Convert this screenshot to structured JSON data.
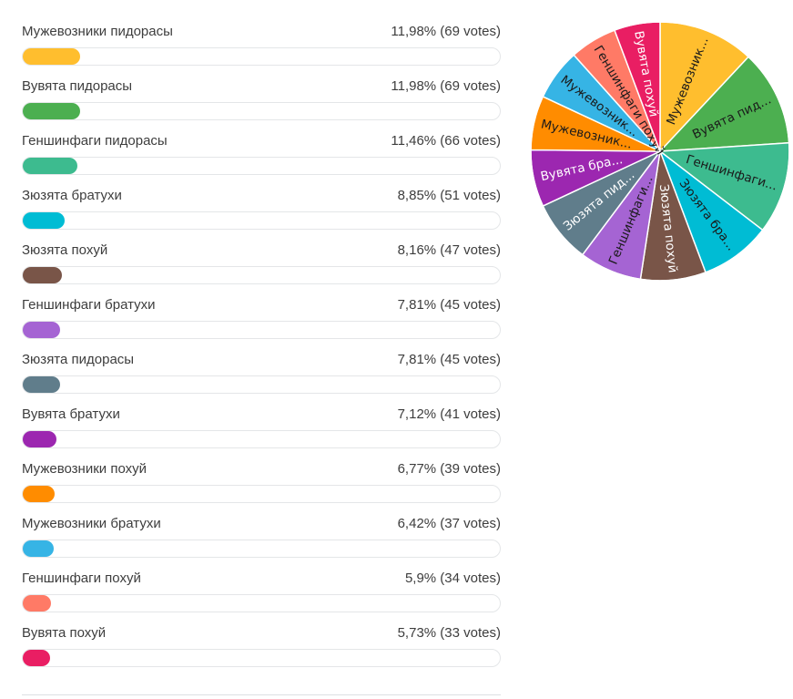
{
  "chart_data": {
    "type": "pie",
    "vote_unit": "votes",
    "options": [
      {
        "label": "Мужевозники пидорасы",
        "pct_text": "11,98%",
        "votes": 69,
        "percent": 11.98,
        "color": "#FFBE2E",
        "pie_label": "Мужевозник...",
        "label_color": "#1a1a1a"
      },
      {
        "label": "Вувята пидорасы",
        "pct_text": "11,98%",
        "votes": 69,
        "percent": 11.98,
        "color": "#4CAF50",
        "pie_label": "Вувята пид...",
        "label_color": "#1a1a1a"
      },
      {
        "label": "Геншинфаги пидорасы",
        "pct_text": "11,46%",
        "votes": 66,
        "percent": 11.46,
        "color": "#3DBB8F",
        "pie_label": "Геншинфаги...",
        "label_color": "#1a1a1a"
      },
      {
        "label": "Зюзята братухи",
        "pct_text": "8,85%",
        "votes": 51,
        "percent": 8.85,
        "color": "#00BCD4",
        "pie_label": "Зюзята бра...",
        "label_color": "#1a1a1a"
      },
      {
        "label": "Зюзята похуй",
        "pct_text": "8,16%",
        "votes": 47,
        "percent": 8.16,
        "color": "#795548",
        "pie_label": "Зюзята похуй",
        "label_color": "#ffffff"
      },
      {
        "label": "Геншинфаги братухи",
        "pct_text": "7,81%",
        "votes": 45,
        "percent": 7.81,
        "color": "#A564D3",
        "pie_label": "Геншинфаги...",
        "label_color": "#1a1a1a"
      },
      {
        "label": "Зюзята пидорасы",
        "pct_text": "7,81%",
        "votes": 45,
        "percent": 7.81,
        "color": "#607D8B",
        "pie_label": "Зюзята пид...",
        "label_color": "#ffffff"
      },
      {
        "label": "Вувята братухи",
        "pct_text": "7,12%",
        "votes": 41,
        "percent": 7.12,
        "color": "#9C27B0",
        "pie_label": "Вувята бра...",
        "label_color": "#ffffff"
      },
      {
        "label": "Мужевозники похуй",
        "pct_text": "6,77%",
        "votes": 39,
        "percent": 6.77,
        "color": "#FF8C00",
        "pie_label": "Мужевозник...",
        "label_color": "#1a1a1a"
      },
      {
        "label": "Мужевозники братухи",
        "pct_text": "6,42%",
        "votes": 37,
        "percent": 6.42,
        "color": "#36B4E5",
        "pie_label": "Мужевозник...",
        "label_color": "#1a1a1a"
      },
      {
        "label": "Геншинфаги похуй",
        "pct_text": "5,9%",
        "votes": 34,
        "percent": 5.9,
        "color": "#FF7A66",
        "pie_label": "Геншинфаги похуй",
        "label_color": "#1a1a1a"
      },
      {
        "label": "Вувята похуй",
        "pct_text": "5,73%",
        "votes": 33,
        "percent": 5.73,
        "color": "#E91E63",
        "pie_label": "Вувята похуй",
        "label_color": "#ffffff"
      }
    ]
  }
}
